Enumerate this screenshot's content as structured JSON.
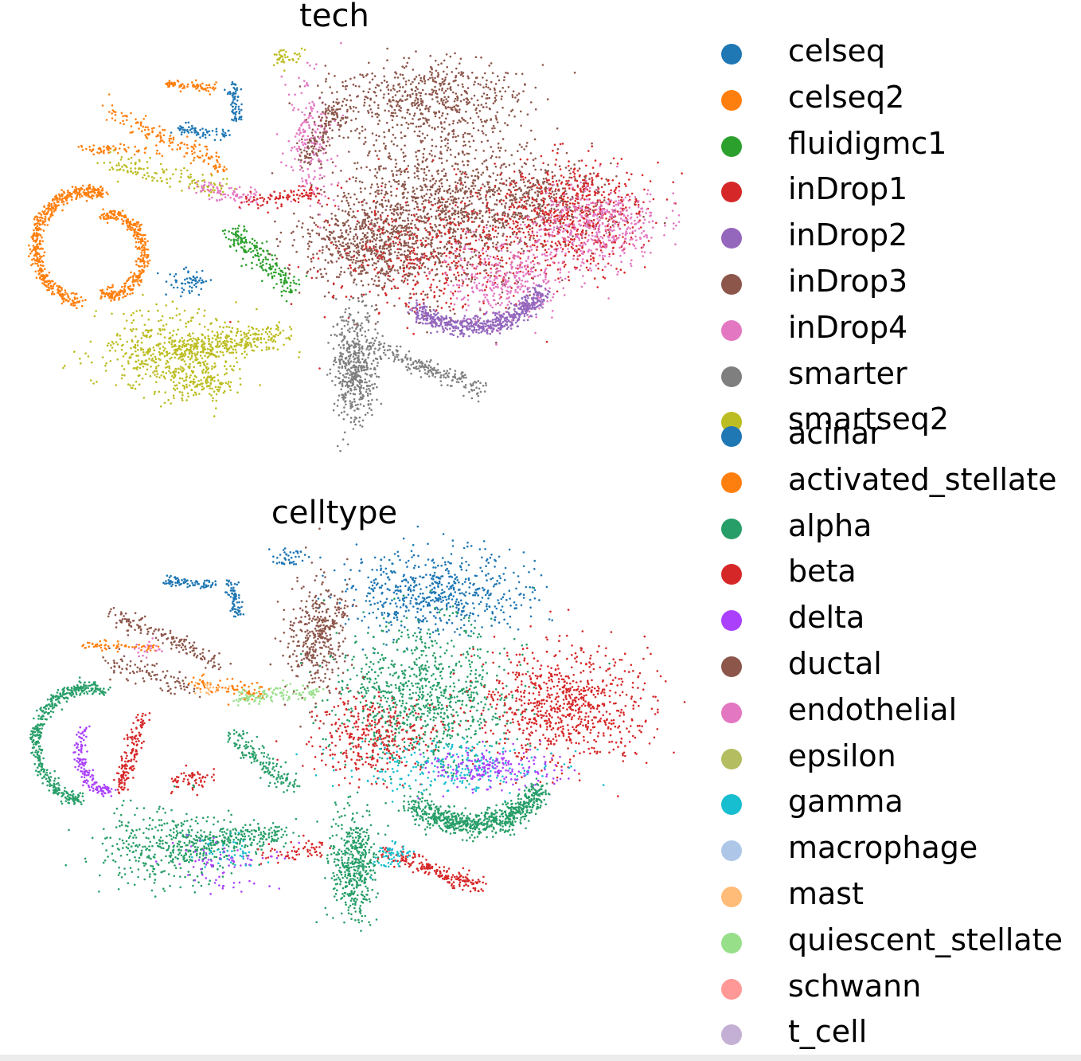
{
  "chart_data": [
    {
      "type": "scatter",
      "title": "tech",
      "xlabel": "",
      "ylabel": "",
      "grid": false,
      "axes_visible": false,
      "legend_placement": "right",
      "series": [
        {
          "name": "celseq",
          "color": "#1f77b4"
        },
        {
          "name": "celseq2",
          "color": "#ff7f0e"
        },
        {
          "name": "fluidigmc1",
          "color": "#2ca02c"
        },
        {
          "name": "inDrop1",
          "color": "#d62728"
        },
        {
          "name": "inDrop2",
          "color": "#9467bd"
        },
        {
          "name": "inDrop3",
          "color": "#8c564b"
        },
        {
          "name": "inDrop4",
          "color": "#e377c2"
        },
        {
          "name": "smarter",
          "color": "#7f7f7f"
        },
        {
          "name": "smartseq2",
          "color": "#bcbd22"
        }
      ]
    },
    {
      "type": "scatter",
      "title": "celltype",
      "xlabel": "",
      "ylabel": "",
      "grid": false,
      "axes_visible": false,
      "legend_placement": "right",
      "series": [
        {
          "name": "acinar",
          "color": "#1f77b4"
        },
        {
          "name": "activated_stellate",
          "color": "#ff7f0e"
        },
        {
          "name": "alpha",
          "color": "#279e68"
        },
        {
          "name": "beta",
          "color": "#d62728"
        },
        {
          "name": "delta",
          "color": "#aa40fc"
        },
        {
          "name": "ductal",
          "color": "#8c564b"
        },
        {
          "name": "endothelial",
          "color": "#e377c2"
        },
        {
          "name": "epsilon",
          "color": "#b5bd61"
        },
        {
          "name": "gamma",
          "color": "#17becf"
        },
        {
          "name": "macrophage",
          "color": "#aec7e8"
        },
        {
          "name": "mast",
          "color": "#ffbb78"
        },
        {
          "name": "quiescent_stellate",
          "color": "#98df8a"
        },
        {
          "name": "schwann",
          "color": "#ff9896"
        },
        {
          "name": "t_cell",
          "color": "#c5b0d5"
        }
      ]
    }
  ]
}
